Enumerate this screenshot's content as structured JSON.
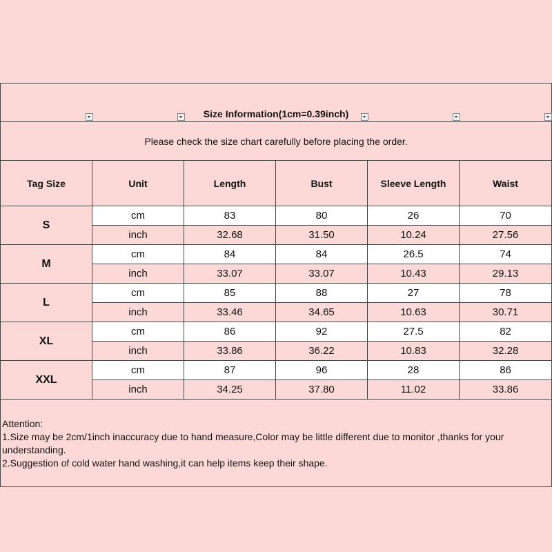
{
  "title": "Size Information(1cm=0.39inch)",
  "notice": "Please check the size chart carefully before placing the order.",
  "headers": [
    "Tag Size",
    "Unit",
    "Length",
    "Bust",
    "Sleeve Length",
    "Waist"
  ],
  "rows": [
    {
      "size": "S",
      "cm": {
        "unit": "cm",
        "values": [
          "83",
          "80",
          "26",
          "70"
        ]
      },
      "inch": {
        "unit": "inch",
        "values": [
          "32.68",
          "31.50",
          "10.24",
          "27.56"
        ]
      }
    },
    {
      "size": "M",
      "cm": {
        "unit": "cm",
        "values": [
          "84",
          "84",
          "26.5",
          "74"
        ]
      },
      "inch": {
        "unit": "inch",
        "values": [
          "33.07",
          "33.07",
          "10.43",
          "29.13"
        ]
      }
    },
    {
      "size": "L",
      "cm": {
        "unit": "cm",
        "values": [
          "85",
          "88",
          "27",
          "78"
        ]
      },
      "inch": {
        "unit": "inch",
        "values": [
          "33.46",
          "34.65",
          "10.63",
          "30.71"
        ]
      }
    },
    {
      "size": "XL",
      "cm": {
        "unit": "cm",
        "values": [
          "86",
          "92",
          "27.5",
          "82"
        ]
      },
      "inch": {
        "unit": "inch",
        "values": [
          "33.86",
          "36.22",
          "10.83",
          "32.28"
        ]
      }
    },
    {
      "size": "XXL",
      "cm": {
        "unit": "cm",
        "values": [
          "87",
          "96",
          "28",
          "86"
        ]
      },
      "inch": {
        "unit": "inch",
        "values": [
          "34.25",
          "37.80",
          "11.02",
          "33.86"
        ]
      }
    }
  ],
  "attention": {
    "heading": "Attention:",
    "line1": "1.Size may be 2cm/1inch inaccuracy due to hand measure,Color may be little different due to monitor ,thanks for your understanding.",
    "line2": "2.Suggestion of cold water hand washing,it can help items keep their shape."
  },
  "colors": {
    "background": "#fcd9d7",
    "white_row": "#ffffff",
    "border": "#444444"
  }
}
